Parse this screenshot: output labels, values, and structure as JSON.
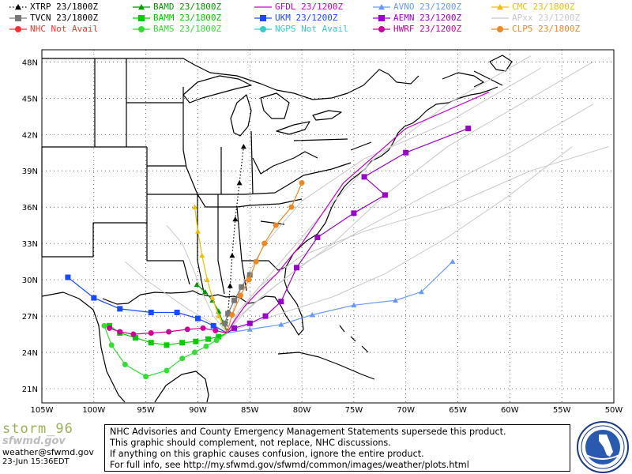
{
  "legend": [
    {
      "model": "XTRP",
      "run": "23/1800Z",
      "color": "#000000",
      "marker": "triangle",
      "dash": "dotted"
    },
    {
      "model": "BAMD",
      "run": "23/1800Z",
      "color": "#009900",
      "marker": "triangle",
      "dash": "solid"
    },
    {
      "model": "GFDL",
      "run": "23/1200Z",
      "color": "#cc00cc",
      "marker": "none",
      "dash": "solid"
    },
    {
      "model": "AVNO",
      "run": "23/1200Z",
      "color": "#6699ff",
      "marker": "triangle",
      "dash": "solid"
    },
    {
      "model": "CMC",
      "run": "23/1800Z",
      "color": "#f0c000",
      "marker": "triangle",
      "dash": "solid"
    },
    {
      "model": "TVCN",
      "run": "23/1800Z",
      "color": "#777777",
      "marker": "square",
      "dash": "solid"
    },
    {
      "model": "BAMM",
      "run": "23/1800Z",
      "color": "#00cc00",
      "marker": "square",
      "dash": "solid"
    },
    {
      "model": "UKM",
      "run": "23/1200Z",
      "color": "#1a4aff",
      "marker": "square",
      "dash": "solid"
    },
    {
      "model": "AEMN",
      "run": "23/1200Z",
      "color": "#9900cc",
      "marker": "square",
      "dash": "solid"
    },
    {
      "model": "APxx",
      "run": "23/1200Z",
      "color": "#c8c8c8",
      "marker": "none",
      "dash": "solid"
    },
    {
      "model": "NHC",
      "run": "Not Avail",
      "color": "#ff3030",
      "marker": "circle",
      "dash": "solid"
    },
    {
      "model": "BAMS",
      "run": "23/1800Z",
      "color": "#33dd33",
      "marker": "circle",
      "dash": "solid"
    },
    {
      "model": "NGPS",
      "run": "Not Avail",
      "color": "#33cccc",
      "marker": "circle",
      "dash": "solid"
    },
    {
      "model": "HWRF",
      "run": "23/1200Z",
      "color": "#cc0099",
      "marker": "circle",
      "dash": "solid"
    },
    {
      "model": "CLP5",
      "run": "23/1800Z",
      "color": "#ee8822",
      "marker": "circle",
      "dash": "solid"
    }
  ],
  "axes": {
    "lat_labels": [
      "48N",
      "45N",
      "42N",
      "39N",
      "36N",
      "33N",
      "30N",
      "27N",
      "24N",
      "21N"
    ],
    "lon_labels": [
      "105W",
      "100W",
      "95W",
      "90W",
      "85W",
      "80W",
      "75W",
      "70W",
      "65W",
      "60W",
      "55W",
      "50W"
    ]
  },
  "branding": {
    "title": "storm_96",
    "site": "sfwmd.gov",
    "email": "weather@sfwmd.gov",
    "timestamp": "23-Jun 15:36EDT"
  },
  "disclaimer": [
    "NHC Advisories and County Emergency Management Statements supersede this product.",
    "This graphic should complement, not replace, NHC discussions.",
    "If anything on this graphic causes confusion, ignore the entire product.",
    "For full info, see  http://my.sfwmd.gov/sfwmd/common/images/weather/plots.html"
  ],
  "seal_text": "SOUTH FLORIDA WATER MANAGEMENT DISTRICT",
  "tracks": [
    {
      "model": "XTRP",
      "points": [
        [
          -87.2,
          25.6
        ],
        [
          -87.1,
          27.3
        ],
        [
          -86.9,
          29.5
        ],
        [
          -86.7,
          32.0
        ],
        [
          -86.4,
          35.0
        ],
        [
          -86.0,
          38.0
        ],
        [
          -85.6,
          41.0
        ]
      ]
    },
    {
      "model": "BAMD",
      "points": [
        [
          -87.2,
          25.6
        ],
        [
          -87.6,
          26.5
        ],
        [
          -88.0,
          27.4
        ],
        [
          -88.6,
          28.3
        ],
        [
          -89.3,
          29.0
        ],
        [
          -90.1,
          29.6
        ]
      ]
    },
    {
      "model": "GFDL",
      "points": [
        [
          -87.2,
          25.6
        ],
        [
          -86.5,
          26.6
        ],
        [
          -85.5,
          27.8
        ],
        [
          -84.2,
          29.0
        ],
        [
          -82.4,
          30.5
        ],
        [
          -80.0,
          33.0
        ],
        [
          -76.0,
          38.0
        ],
        [
          -70.0,
          42.5
        ],
        [
          -62.0,
          45.5
        ]
      ]
    },
    {
      "model": "AVNO",
      "points": [
        [
          -87.2,
          25.6
        ],
        [
          -85.0,
          25.9
        ],
        [
          -82.0,
          26.3
        ],
        [
          -79.0,
          27.1
        ],
        [
          -75.0,
          27.9
        ],
        [
          -71.0,
          28.3
        ],
        [
          -68.5,
          29.0
        ],
        [
          -65.5,
          31.5
        ]
      ]
    },
    {
      "model": "CMC",
      "points": [
        [
          -87.2,
          25.6
        ],
        [
          -88.0,
          27.0
        ],
        [
          -88.6,
          28.5
        ],
        [
          -89.1,
          30.0
        ],
        [
          -89.6,
          32.0
        ],
        [
          -90.0,
          34.0
        ],
        [
          -90.3,
          36.0
        ]
      ]
    },
    {
      "model": "TVCN",
      "points": [
        [
          -87.2,
          25.6
        ],
        [
          -87.4,
          26.4
        ],
        [
          -87.1,
          27.2
        ],
        [
          -86.5,
          28.3
        ],
        [
          -85.8,
          29.4
        ],
        [
          -85.0,
          30.4
        ]
      ]
    },
    {
      "model": "BAMM",
      "points": [
        [
          -87.2,
          25.6
        ],
        [
          -88.0,
          25.3
        ],
        [
          -89.0,
          25.1
        ],
        [
          -90.2,
          24.9
        ],
        [
          -91.5,
          24.8
        ],
        [
          -93.0,
          24.6
        ],
        [
          -94.5,
          24.8
        ],
        [
          -96.0,
          25.2
        ],
        [
          -97.5,
          25.6
        ],
        [
          -98.5,
          26.2
        ]
      ]
    },
    {
      "model": "UKM",
      "points": [
        [
          -87.2,
          25.6
        ],
        [
          -88.5,
          26.2
        ],
        [
          -90.0,
          26.8
        ],
        [
          -92.0,
          27.3
        ],
        [
          -94.5,
          27.3
        ],
        [
          -97.5,
          27.6
        ],
        [
          -100.0,
          28.5
        ],
        [
          -102.5,
          30.2
        ]
      ]
    },
    {
      "model": "AEMN",
      "points": [
        [
          -87.2,
          25.6
        ],
        [
          -86.5,
          26.0
        ],
        [
          -85.0,
          26.4
        ],
        [
          -83.5,
          27.0
        ],
        [
          -82.0,
          28.2
        ],
        [
          -80.5,
          31.0
        ],
        [
          -78.5,
          33.5
        ],
        [
          -75.0,
          35.5
        ],
        [
          -72.0,
          37.0
        ],
        [
          -74.0,
          38.5
        ],
        [
          -70.0,
          40.5
        ],
        [
          -64.0,
          42.5
        ]
      ]
    },
    {
      "model": "NHC",
      "points": []
    },
    {
      "model": "BAMS",
      "points": [
        [
          -87.2,
          25.6
        ],
        [
          -88.2,
          25.0
        ],
        [
          -89.2,
          24.5
        ],
        [
          -90.3,
          24.0
        ],
        [
          -91.5,
          23.5
        ],
        [
          -93.0,
          22.5
        ],
        [
          -95.0,
          22.0
        ],
        [
          -97.0,
          23.0
        ],
        [
          -98.3,
          24.6
        ],
        [
          -99.0,
          26.2
        ]
      ]
    },
    {
      "model": "NGPS",
      "points": []
    },
    {
      "model": "HWRF",
      "points": [
        [
          -87.2,
          25.6
        ],
        [
          -88.3,
          25.8
        ],
        [
          -89.5,
          26.0
        ],
        [
          -91.0,
          25.9
        ],
        [
          -92.8,
          25.7
        ],
        [
          -94.5,
          25.6
        ],
        [
          -96.2,
          25.5
        ],
        [
          -97.5,
          25.7
        ],
        [
          -98.5,
          26.0
        ]
      ]
    },
    {
      "model": "CLP5",
      "points": [
        [
          -87.2,
          25.6
        ],
        [
          -86.7,
          27.1
        ],
        [
          -85.9,
          28.7
        ],
        [
          -85.1,
          30.0
        ],
        [
          -84.4,
          31.5
        ],
        [
          -83.6,
          33.0
        ],
        [
          -82.5,
          34.5
        ],
        [
          -81.0,
          36.0
        ],
        [
          -80.0,
          38.0
        ]
      ]
    },
    {
      "model": "APxx",
      "points": [
        [
          -87.2,
          25.6
        ],
        [
          -86.0,
          27.0
        ],
        [
          -84.0,
          28.5
        ],
        [
          -81.0,
          30.5
        ],
        [
          -77.0,
          33.0
        ],
        [
          -72.0,
          37.0
        ],
        [
          -66.0,
          41.0
        ],
        [
          -58.0,
          45.0
        ],
        [
          -52.0,
          48.0
        ]
      ]
    },
    {
      "model": "APxx",
      "points": [
        [
          -87.2,
          25.6
        ],
        [
          -85.5,
          27.3
        ],
        [
          -83.0,
          29.2
        ],
        [
          -79.5,
          31.5
        ],
        [
          -74.5,
          34.0
        ],
        [
          -68.0,
          37.0
        ],
        [
          -60.0,
          40.5
        ],
        [
          -52.0,
          44.5
        ]
      ]
    },
    {
      "model": "APxx",
      "points": [
        [
          -87.2,
          25.6
        ],
        [
          -86.5,
          27.8
        ],
        [
          -85.5,
          30.0
        ],
        [
          -83.5,
          33.0
        ],
        [
          -80.0,
          36.5
        ],
        [
          -74.0,
          40.0
        ],
        [
          -66.0,
          43.0
        ],
        [
          -57.0,
          47.5
        ]
      ]
    },
    {
      "model": "APxx",
      "points": [
        [
          -87.2,
          25.6
        ],
        [
          -84.5,
          26.5
        ],
        [
          -81.0,
          27.5
        ],
        [
          -77.0,
          28.6
        ],
        [
          -72.0,
          30.5
        ],
        [
          -66.0,
          33.5
        ],
        [
          -60.0,
          37.0
        ],
        [
          -54.0,
          41.0
        ]
      ]
    },
    {
      "model": "APxx",
      "points": [
        [
          -87.2,
          25.6
        ],
        [
          -88.5,
          27.0
        ],
        [
          -89.5,
          28.8
        ],
        [
          -90.5,
          31.0
        ],
        [
          -91.5,
          33.0
        ],
        [
          -93.0,
          34.5
        ]
      ]
    },
    {
      "model": "APxx",
      "points": [
        [
          -87.2,
          25.6
        ],
        [
          -89.0,
          26.6
        ],
        [
          -91.0,
          27.6
        ],
        [
          -93.0,
          28.8
        ],
        [
          -95.0,
          30.0
        ],
        [
          -97.0,
          31.5
        ]
      ]
    },
    {
      "model": "APxx",
      "points": [
        [
          -87.2,
          25.6
        ],
        [
          -86.0,
          27.5
        ],
        [
          -84.0,
          29.5
        ],
        [
          -80.0,
          32.0
        ],
        [
          -74.0,
          34.0
        ],
        [
          -66.0,
          36.0
        ],
        [
          -58.0,
          39.0
        ],
        [
          -50.5,
          41.0
        ]
      ]
    },
    {
      "model": "APxx",
      "points": [
        [
          -87.2,
          25.6
        ],
        [
          -85.0,
          28.5
        ],
        [
          -82.0,
          31.5
        ],
        [
          -78.0,
          35.5
        ],
        [
          -73.0,
          40.0
        ],
        [
          -66.0,
          44.5
        ],
        [
          -58.0,
          48.5
        ]
      ]
    }
  ]
}
